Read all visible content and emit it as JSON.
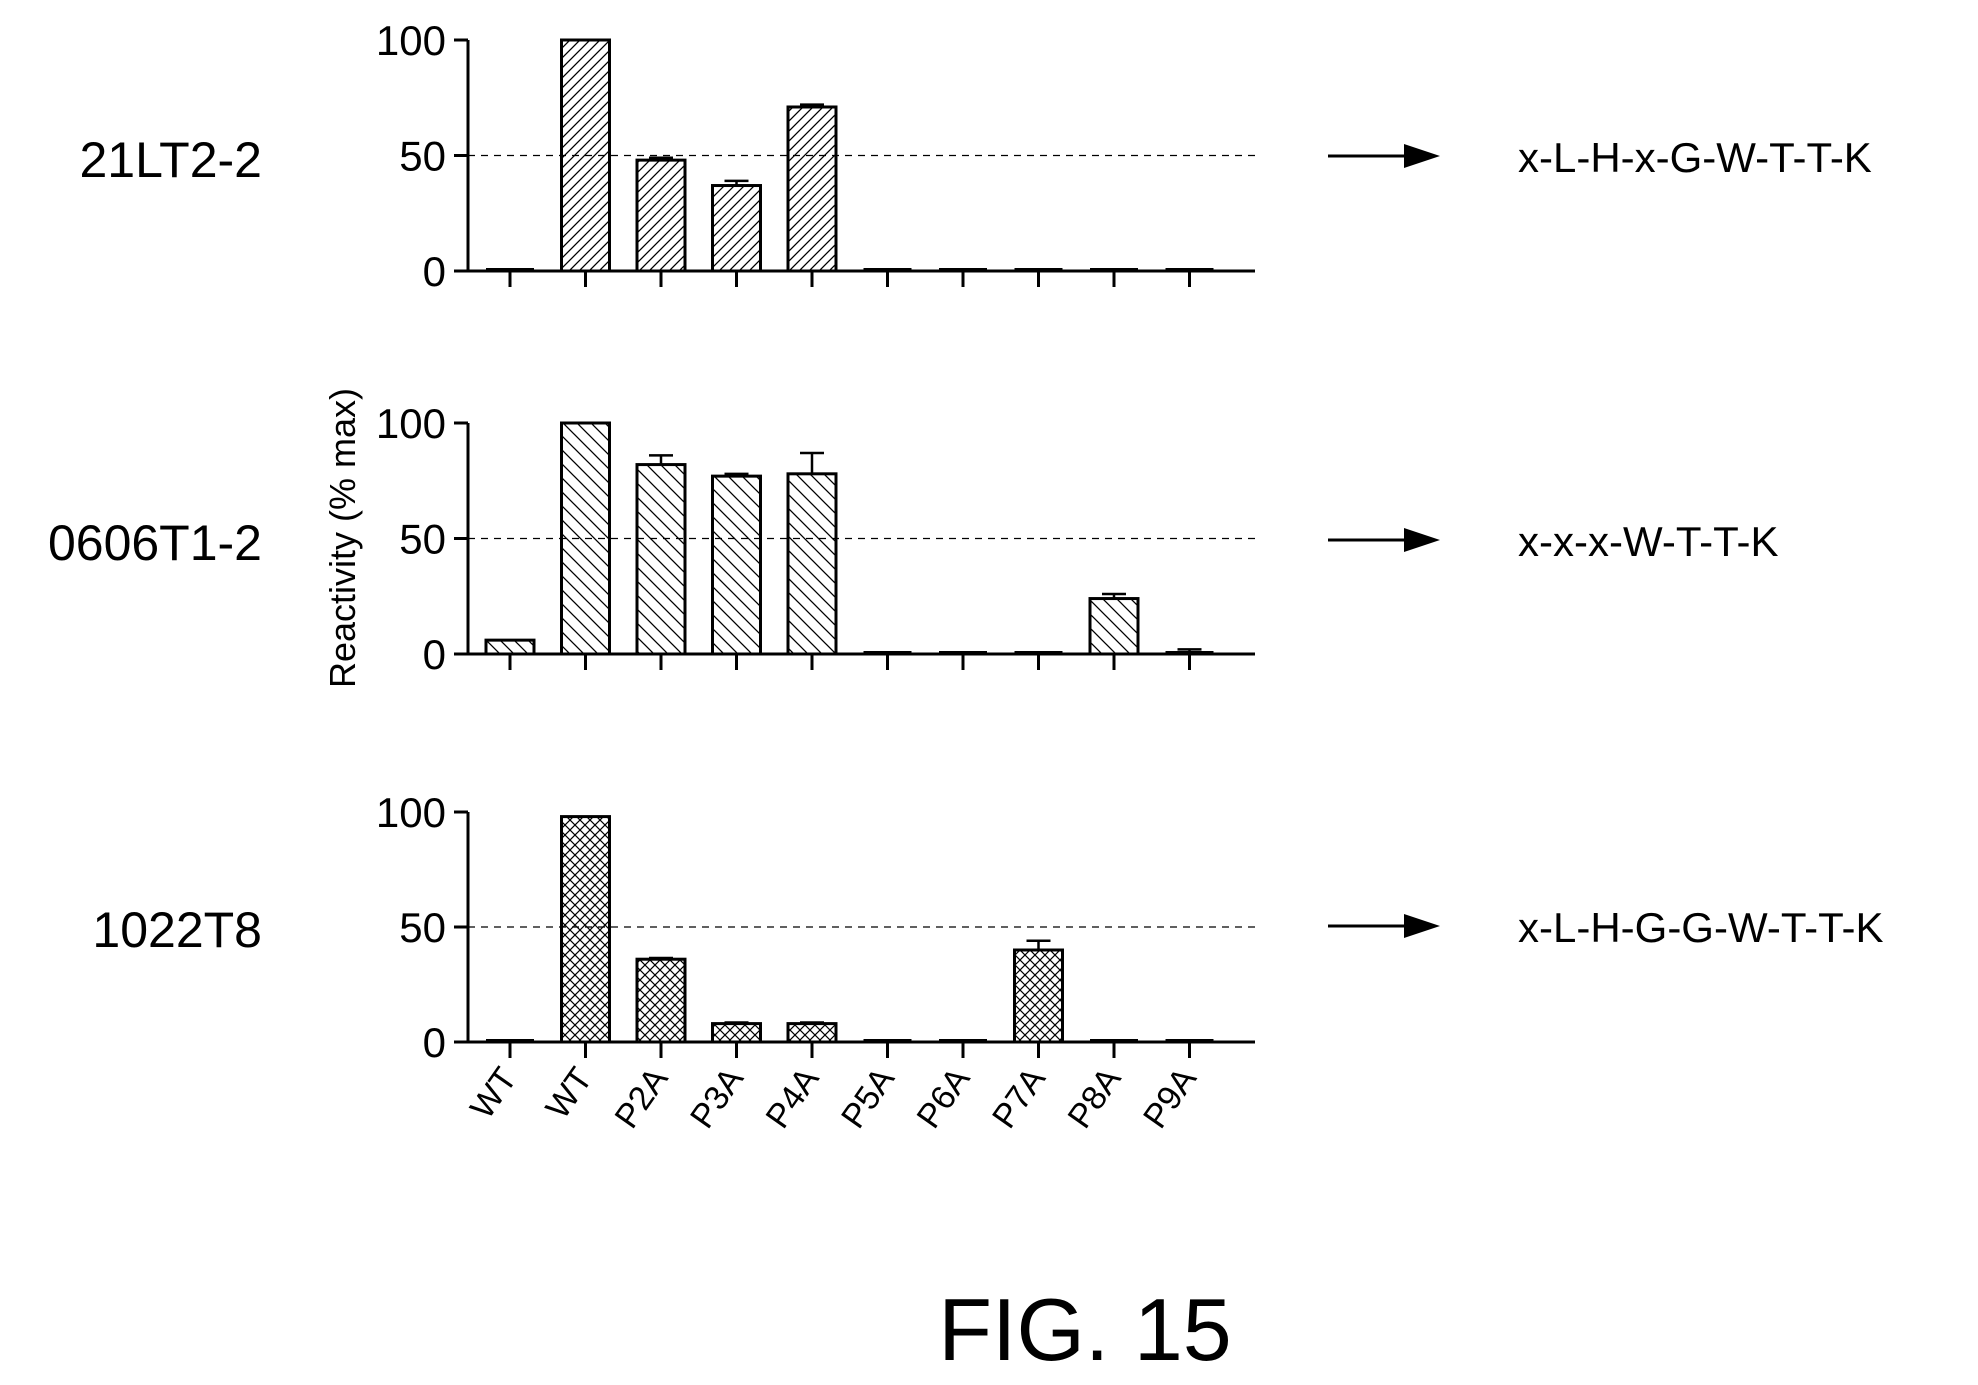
{
  "figure_label": "FIG. 15",
  "y_axis_label": "Reactivity (% max)",
  "categories": [
    "WT",
    "WT",
    "P2A",
    "P3A",
    "P4A",
    "P5A",
    "P6A",
    "P7A",
    "P8A",
    "P9A"
  ],
  "panels": [
    {
      "name": "21LT2-2",
      "motif": "x-L-H-x-G-W-T-T-K",
      "pattern": "diag-right"
    },
    {
      "name": "0606T1-2",
      "motif": "x-x-x-W-T-T-K",
      "pattern": "diag-left"
    },
    {
      "name": "1022T8",
      "motif": "x-L-H-G-G-W-T-T-K",
      "pattern": "cross"
    }
  ],
  "chart_data": [
    {
      "type": "bar",
      "title": "21LT2-2",
      "ylabel": "Reactivity (% max)",
      "categories": [
        "WT",
        "WT",
        "P2A",
        "P3A",
        "P4A",
        "P5A",
        "P6A",
        "P7A",
        "P8A",
        "P9A"
      ],
      "values": [
        0.5,
        100,
        48,
        37,
        71,
        0.5,
        0.5,
        0.5,
        0.5,
        0.5
      ],
      "errors": [
        0,
        0,
        1,
        2,
        1,
        0,
        0,
        0,
        0,
        0
      ],
      "ylim": [
        0,
        100
      ],
      "yticks": [
        0,
        50,
        100
      ],
      "reference_line": 50
    },
    {
      "type": "bar",
      "title": "0606T1-2",
      "ylabel": "Reactivity (% max)",
      "categories": [
        "WT",
        "WT",
        "P2A",
        "P3A",
        "P4A",
        "P5A",
        "P6A",
        "P7A",
        "P8A",
        "P9A"
      ],
      "values": [
        6,
        100,
        82,
        77,
        78,
        0.5,
        0.5,
        0.5,
        24,
        1
      ],
      "errors": [
        0,
        0,
        4,
        1,
        9,
        0,
        0,
        0,
        2,
        1
      ],
      "ylim": [
        0,
        100
      ],
      "yticks": [
        0,
        50,
        100
      ],
      "reference_line": 50
    },
    {
      "type": "bar",
      "title": "1022T8",
      "ylabel": "Reactivity (% max)",
      "categories": [
        "WT",
        "WT",
        "P2A",
        "P3A",
        "P4A",
        "P5A",
        "P6A",
        "P7A",
        "P8A",
        "P9A"
      ],
      "values": [
        0.5,
        98,
        36,
        8,
        8,
        0.5,
        0.5,
        40,
        0.5,
        0.5
      ],
      "errors": [
        0,
        0,
        0.5,
        0.5,
        0.5,
        0,
        0,
        4,
        0,
        0
      ],
      "ylim": [
        0,
        100
      ],
      "yticks": [
        0,
        50,
        100
      ],
      "reference_line": 50
    }
  ]
}
